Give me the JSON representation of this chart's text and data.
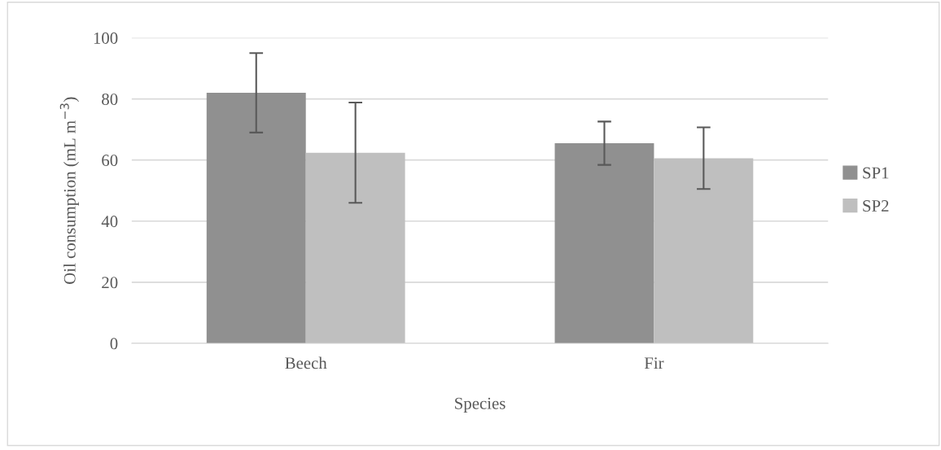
{
  "chart_data": {
    "type": "bar",
    "xlabel": "Species",
    "ylabel": "Oil consumption (mL m$^{−3}$)",
    "categories": [
      "Beech",
      "Fir"
    ],
    "series": [
      {
        "name": "SP1",
        "color": "#909090",
        "values": [
          82.0,
          65.5
        ],
        "errors": [
          13.0,
          7.1
        ]
      },
      {
        "name": "SP2",
        "color": "#bfbfbf",
        "values": [
          62.4,
          60.6
        ],
        "errors": [
          16.4,
          10.1
        ]
      }
    ],
    "ylim": [
      0,
      100
    ],
    "yticks": [
      0,
      20,
      40,
      60,
      80,
      100
    ],
    "grid": "y",
    "legend": "right"
  }
}
